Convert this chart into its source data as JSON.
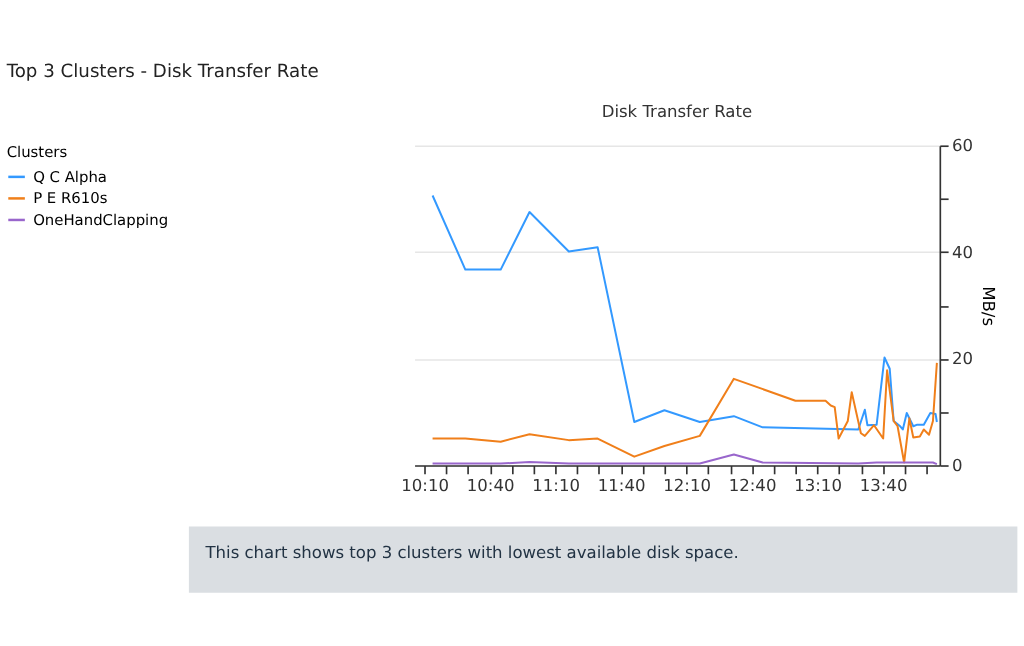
{
  "chart_data": {
    "type": "line",
    "title": "Top 3 Clusters - Disk Transfer Rate",
    "subtitle": "Disk Transfer Rate",
    "ylabel": "MB/s",
    "legend_title": "Clusters",
    "legend": "left",
    "grid": "y",
    "line_style": "solid",
    "marker": "none",
    "annotations": [
      "This chart shows top 3 clusters with lowest available disk space."
    ],
    "xlim": [
      10.09,
      14.1
    ],
    "xticks": [
      {
        "value": 10.1667,
        "label": "10:10"
      },
      {
        "value": 10.3333,
        "label": null
      },
      {
        "value": 10.5,
        "label": null
      },
      {
        "value": 10.6667,
        "label": "10:40"
      },
      {
        "value": 10.8333,
        "label": null
      },
      {
        "value": 11.0,
        "label": null
      },
      {
        "value": 11.1667,
        "label": "11:10"
      },
      {
        "value": 11.3333,
        "label": null
      },
      {
        "value": 11.5,
        "label": null
      },
      {
        "value": 11.6667,
        "label": "11:40"
      },
      {
        "value": 11.8333,
        "label": null
      },
      {
        "value": 12.0,
        "label": null
      },
      {
        "value": 12.1667,
        "label": "12:10"
      },
      {
        "value": 12.3333,
        "label": null
      },
      {
        "value": 12.5,
        "label": null
      },
      {
        "value": 12.6667,
        "label": "12:40"
      },
      {
        "value": 12.8333,
        "label": null
      },
      {
        "value": 13.0,
        "label": null
      },
      {
        "value": 13.1667,
        "label": "13:10"
      },
      {
        "value": 13.3333,
        "label": null
      },
      {
        "value": 13.5,
        "label": null
      },
      {
        "value": 13.6667,
        "label": "13:40"
      },
      {
        "value": 13.8333,
        "label": null
      },
      {
        "value": 14.0,
        "label": null
      }
    ],
    "ylim": [
      0,
      60
    ],
    "yticks": [
      0,
      {
        "value": 10,
        "label": null
      },
      20,
      {
        "value": 30,
        "label": null
      },
      40,
      {
        "value": 50,
        "label": null
      },
      60
    ],
    "series": [
      {
        "name": "Q C  Alpha",
        "color": "#3399ff",
        "x": [
          10.23,
          10.48,
          10.75,
          10.97,
          11.27,
          11.49,
          11.77,
          12.0,
          12.27,
          12.53,
          12.75,
          13.48,
          13.53,
          13.55,
          13.62,
          13.68,
          13.72,
          13.75,
          13.8,
          13.82,
          13.85,
          13.9,
          13.93,
          13.98,
          14.03,
          14.07,
          14.08
        ],
        "values": [
          50.6,
          36.7,
          36.7,
          47.5,
          40.1,
          40.9,
          8.1,
          10.3,
          8.1,
          9.2,
          7.1,
          6.7,
          10.4,
          7.5,
          7.6,
          20.2,
          18.1,
          8.3,
          7.3,
          6.7,
          9.8,
          7.3,
          7.6,
          7.6,
          9.8,
          9.6,
          8.1
        ]
      },
      {
        "name": "P E  R610s",
        "color": "#f07f1a",
        "x": [
          10.23,
          10.48,
          10.75,
          10.97,
          11.27,
          11.49,
          11.77,
          12.0,
          12.27,
          12.53,
          13.0,
          13.23,
          13.27,
          13.3,
          13.33,
          13.4,
          13.43,
          13.5,
          13.53,
          13.6,
          13.67,
          13.7,
          13.75,
          13.78,
          13.83,
          13.87,
          13.9,
          13.95,
          13.98,
          14.02,
          14.05,
          14.08
        ],
        "values": [
          5.0,
          5.0,
          4.4,
          5.8,
          4.7,
          5.0,
          1.6,
          3.6,
          5.5,
          16.2,
          12.1,
          12.1,
          11.2,
          10.9,
          5.0,
          8.3,
          13.7,
          6.0,
          5.5,
          7.5,
          5.0,
          17.8,
          8.3,
          7.3,
          0.5,
          8.8,
          5.2,
          5.4,
          6.7,
          5.7,
          8.3,
          19.2
        ]
      },
      {
        "name": "OneHandClapping",
        "color": "#9966cc",
        "x": [
          10.23,
          10.48,
          10.75,
          10.97,
          11.27,
          11.49,
          11.77,
          12.0,
          12.27,
          12.53,
          12.75,
          13.48,
          13.62,
          13.75,
          13.9,
          14.05,
          14.08
        ],
        "values": [
          0.3,
          0.3,
          0.3,
          0.6,
          0.3,
          0.3,
          0.3,
          0.3,
          0.3,
          2.0,
          0.5,
          0.3,
          0.5,
          0.5,
          0.5,
          0.5,
          0.2
        ]
      }
    ]
  }
}
